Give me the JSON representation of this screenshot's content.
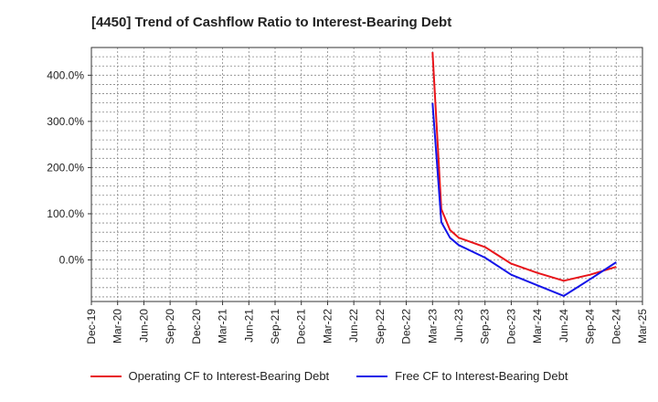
{
  "chart_data": {
    "type": "line",
    "title": "[4450]  Trend of Cashflow Ratio to Interest-Bearing Debt",
    "x_ticks": [
      "Dec-19",
      "Mar-20",
      "Jun-20",
      "Sep-20",
      "Dec-20",
      "Mar-21",
      "Jun-21",
      "Sep-21",
      "Dec-21",
      "Mar-22",
      "Jun-22",
      "Sep-22",
      "Dec-22",
      "Mar-23",
      "Jun-23",
      "Sep-23",
      "Dec-23",
      "Mar-24",
      "Jun-24",
      "Sep-24",
      "Dec-24",
      "Mar-25"
    ],
    "y_ticks": [
      "0.0%",
      "100.0%",
      "200.0%",
      "300.0%",
      "400.0%"
    ],
    "ylim": [
      -90,
      460
    ],
    "grid": true,
    "legend_position": "bottom",
    "series": [
      {
        "name": "Operating CF to Interest-Bearing Debt",
        "color": "#e8141a",
        "points": [
          [
            "Mar-23",
            450
          ],
          [
            "Apr-23",
            110
          ],
          [
            "May-23",
            65
          ],
          [
            "Jun-23",
            48
          ],
          [
            "Sep-23",
            28
          ],
          [
            "Dec-23",
            -8
          ],
          [
            "Mar-24",
            -28
          ],
          [
            "Jun-24",
            -45
          ],
          [
            "Sep-24",
            -32
          ],
          [
            "Dec-24",
            -15
          ]
        ]
      },
      {
        "name": "Free CF to Interest-Bearing Debt",
        "color": "#1414e8",
        "points": [
          [
            "Mar-23",
            340
          ],
          [
            "Apr-23",
            82
          ],
          [
            "May-23",
            48
          ],
          [
            "Jun-23",
            32
          ],
          [
            "Sep-23",
            5
          ],
          [
            "Dec-23",
            -32
          ],
          [
            "Mar-24",
            -55
          ],
          [
            "Jun-24",
            -78
          ],
          [
            "Sep-24",
            -42
          ],
          [
            "Dec-24",
            -5
          ]
        ]
      }
    ]
  }
}
